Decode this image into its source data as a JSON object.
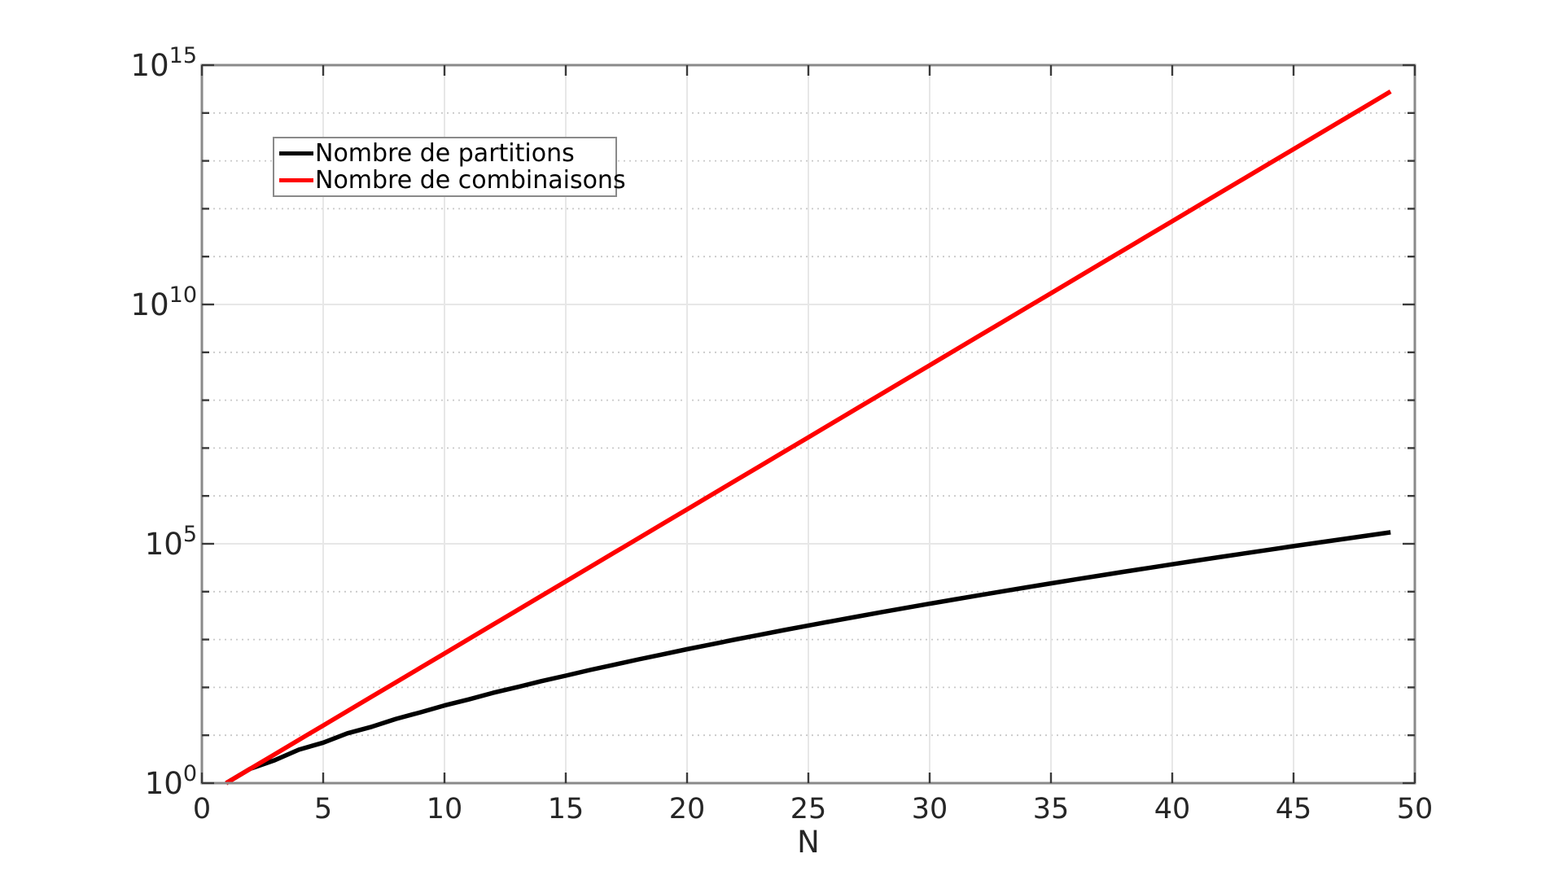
{
  "figure": {
    "background": "#ffffff",
    "axes": {
      "xlabel": "N",
      "x_tick_values": [
        0,
        5,
        10,
        15,
        20,
        25,
        30,
        35,
        40,
        45,
        50
      ],
      "x_tick_labels": [
        "0",
        "5",
        "10",
        "15",
        "20",
        "25",
        "30",
        "35",
        "40",
        "45",
        "50"
      ],
      "y_tick_base": "10",
      "y_tick_exponents": [
        "0",
        "5",
        "10",
        "15"
      ],
      "y_tick_exponent_values": [
        0,
        5,
        10,
        15
      ]
    }
  },
  "chart_data": {
    "type": "line",
    "title": "",
    "xlabel": "N",
    "ylabel": "",
    "x_range": [
      0,
      50
    ],
    "y_scale": "log10",
    "y_range_exponents": [
      0,
      15
    ],
    "grid": "on",
    "minor_grid": "on",
    "legend_position": "upper-left-inside",
    "series": [
      {
        "name": "Nombre de partitions",
        "color": "#000000",
        "x": [
          1,
          2,
          3,
          4,
          5,
          6,
          7,
          8,
          9,
          10,
          11,
          12,
          13,
          14,
          15,
          16,
          17,
          18,
          19,
          20,
          21,
          22,
          23,
          24,
          25,
          26,
          27,
          28,
          29,
          30,
          31,
          32,
          33,
          34,
          35,
          36,
          37,
          38,
          39,
          40,
          41,
          42,
          43,
          44,
          45,
          46,
          47,
          48,
          49
        ],
        "values": [
          1,
          2,
          3,
          5,
          7,
          11,
          15,
          22,
          30,
          42,
          56,
          77,
          101,
          135,
          176,
          231,
          297,
          385,
          490,
          627,
          792,
          1002,
          1255,
          1575,
          1958,
          2436,
          3010,
          3718,
          4565,
          5604,
          6842,
          8349,
          10143,
          12310,
          14883,
          17977,
          21637,
          26015,
          31185,
          37338,
          44583,
          53174,
          63261,
          75175,
          89134,
          105558,
          124754,
          147273,
          173525
        ]
      },
      {
        "name": "Nombre de combinaisons",
        "color": "#ff0000",
        "x": [
          1,
          2,
          3,
          4,
          5,
          6,
          7,
          8,
          9,
          10,
          11,
          12,
          13,
          14,
          15,
          16,
          17,
          18,
          19,
          20,
          21,
          22,
          23,
          24,
          25,
          26,
          27,
          28,
          29,
          30,
          31,
          32,
          33,
          34,
          35,
          36,
          37,
          38,
          39,
          40,
          41,
          42,
          43,
          44,
          45,
          46,
          47,
          48,
          49
        ],
        "values": [
          1,
          2,
          4,
          8,
          16,
          32,
          64,
          128,
          256,
          512,
          1024,
          2048,
          4096,
          8192,
          16384,
          32768,
          65536,
          131072,
          262144,
          524288,
          1048576,
          2097152,
          4194304,
          8388608,
          16777216,
          33554432,
          67108864,
          134217728,
          268435456,
          536870912,
          1073741824,
          2147483648,
          4294967296,
          8589934592,
          17179869184,
          34359738368,
          68719476736,
          137438953472,
          274877906944,
          549755813888,
          1099511627776,
          2199023255552,
          4398046511104,
          8796093022208,
          17592186044416,
          35184372088832,
          70368744177664,
          140737488355328,
          281474976710656
        ]
      }
    ]
  }
}
